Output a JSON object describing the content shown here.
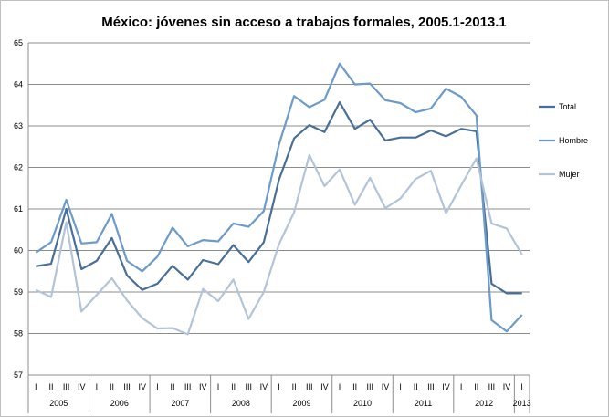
{
  "chart_data": {
    "type": "line",
    "title": "México: jóvenes sin acceso a trabajos formales, 2005.1-2013.1",
    "ylim": [
      57,
      65
    ],
    "yticks": [
      57,
      58,
      59,
      60,
      61,
      62,
      63,
      64,
      65
    ],
    "grid": true,
    "legend_position": "right",
    "quarter_labels": [
      "I",
      "II",
      "III",
      "IV",
      "I",
      "II",
      "III",
      "IV",
      "I",
      "II",
      "III",
      "IV",
      "I",
      "II",
      "III",
      "IV",
      "I",
      "II",
      "III",
      "IV",
      "I",
      "II",
      "III",
      "IV",
      "I",
      "II",
      "III",
      "IV",
      "I",
      "II",
      "III",
      "IV",
      "I"
    ],
    "years": [
      {
        "label": "2005",
        "start": 0,
        "count": 4
      },
      {
        "label": "2006",
        "start": 4,
        "count": 4
      },
      {
        "label": "2007",
        "start": 8,
        "count": 4
      },
      {
        "label": "2008",
        "start": 12,
        "count": 4
      },
      {
        "label": "2009",
        "start": 16,
        "count": 4
      },
      {
        "label": "2010",
        "start": 20,
        "count": 4
      },
      {
        "label": "2011",
        "start": 24,
        "count": 4
      },
      {
        "label": "2012",
        "start": 28,
        "count": 4
      },
      {
        "label": "2013",
        "start": 32,
        "count": 1
      }
    ],
    "series": [
      {
        "name": "Total",
        "color": "#4a6f96",
        "values": [
          59.62,
          59.68,
          61.0,
          59.55,
          59.75,
          60.3,
          59.4,
          59.05,
          59.2,
          59.63,
          59.3,
          59.77,
          59.67,
          60.13,
          59.72,
          60.2,
          61.7,
          62.7,
          63.02,
          62.85,
          63.57,
          62.93,
          63.15,
          62.65,
          62.72,
          62.72,
          62.89,
          62.75,
          62.93,
          62.87,
          59.2,
          58.97,
          58.97
        ]
      },
      {
        "name": "Hombre",
        "color": "#6c9bc9",
        "values": [
          59.95,
          60.2,
          61.22,
          60.17,
          60.2,
          60.88,
          59.75,
          59.5,
          59.85,
          60.55,
          60.1,
          60.25,
          60.22,
          60.65,
          60.57,
          60.95,
          62.55,
          63.72,
          63.45,
          63.63,
          64.5,
          64.0,
          64.02,
          63.62,
          63.55,
          63.33,
          63.42,
          63.9,
          63.7,
          63.25,
          58.32,
          58.05,
          58.45
        ]
      },
      {
        "name": "Mujer",
        "color": "#b3c4d9",
        "values": [
          59.05,
          58.88,
          60.68,
          58.53,
          58.93,
          59.33,
          58.8,
          58.37,
          58.12,
          58.13,
          57.98,
          59.07,
          58.78,
          59.3,
          58.35,
          59.0,
          60.15,
          60.92,
          62.3,
          61.55,
          61.95,
          61.1,
          61.75,
          61.02,
          61.25,
          61.72,
          61.92,
          60.9,
          61.57,
          62.22,
          60.65,
          60.53,
          59.9
        ]
      }
    ]
  }
}
